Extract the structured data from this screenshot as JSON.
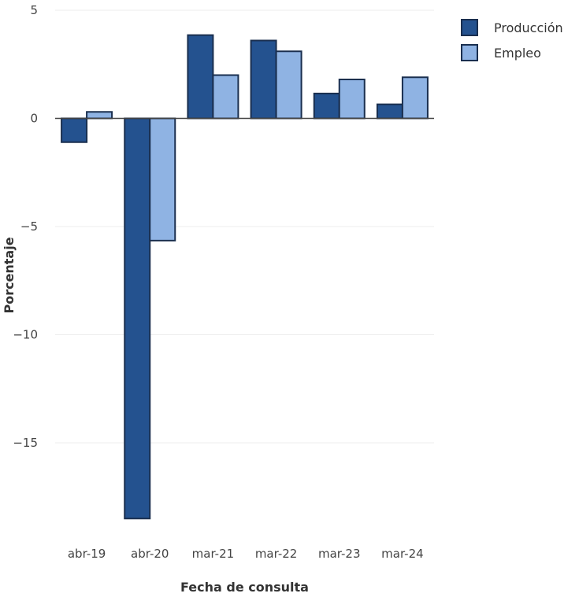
{
  "chart_data": {
    "type": "bar",
    "title": "",
    "xlabel": "Fecha de consulta",
    "ylabel": "Porcentaje",
    "categories": [
      "abr-19",
      "abr-20",
      "mar-21",
      "mar-22",
      "mar-23",
      "mar-24"
    ],
    "series": [
      {
        "name": "Producción",
        "color": "#24528f",
        "values": [
          -1.1,
          -18.5,
          3.85,
          3.6,
          1.15,
          0.65
        ]
      },
      {
        "name": "Empleo",
        "color": "#8fb3e3",
        "values": [
          0.3,
          -5.65,
          2.0,
          3.1,
          1.8,
          1.9
        ]
      }
    ],
    "ylim": [
      -19.5,
      5
    ],
    "yticks": [
      5,
      0,
      -5,
      -10,
      -15
    ],
    "ytick_labels": [
      "5",
      "0",
      "−5",
      "−10",
      "−15"
    ],
    "grid": true,
    "legend_position": "top-right"
  }
}
